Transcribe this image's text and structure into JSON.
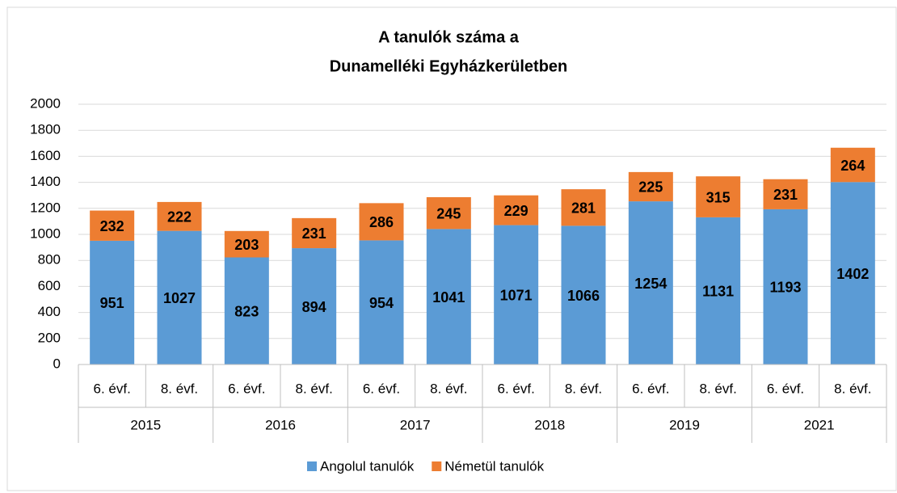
{
  "chart_data": {
    "type": "stacked_bar",
    "title": [
      "A tanulók száma a",
      "Dunamelléki Egyházkerületben"
    ],
    "categories": [
      "6. évf.",
      "8. évf.",
      "6. évf.",
      "8. évf.",
      "6. évf.",
      "8. évf.",
      "6. évf.",
      "8. évf.",
      "6. évf.",
      "8. évf.",
      "6. évf.",
      "8. évf."
    ],
    "groups": [
      "2015",
      "2016",
      "2017",
      "2018",
      "2019",
      "2021"
    ],
    "series": [
      {
        "name": "Angolul tanulók",
        "color": "#5b9bd5",
        "values": [
          951,
          1027,
          823,
          894,
          954,
          1041,
          1071,
          1066,
          1254,
          1131,
          1193,
          1402
        ]
      },
      {
        "name": "Németül tanulók",
        "color": "#ed7d31",
        "values": [
          232,
          222,
          203,
          231,
          286,
          245,
          229,
          281,
          225,
          315,
          231,
          264
        ]
      }
    ],
    "ylim": [
      0,
      2000
    ],
    "yticks": [
      0,
      200,
      400,
      600,
      800,
      1000,
      1200,
      1400,
      1600,
      1800,
      2000
    ],
    "grid": true,
    "legend": "bottom"
  }
}
